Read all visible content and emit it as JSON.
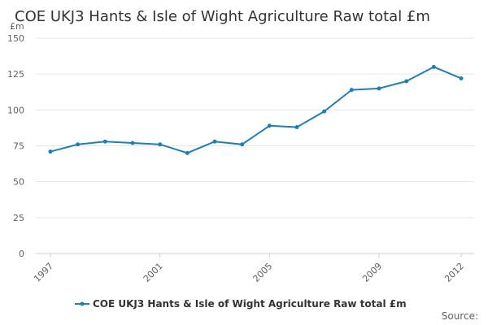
{
  "chart_data": {
    "type": "line",
    "title": "COE UKJ3 Hants & Isle of Wight Agriculture Raw total £m",
    "ylabel": "£m",
    "xlabel": "",
    "ylim": [
      0,
      150
    ],
    "yticks": [
      0,
      25,
      50,
      75,
      100,
      125,
      150
    ],
    "ytick_labels": [
      "0",
      "25",
      "50",
      "75",
      "100",
      "125",
      "150"
    ],
    "x": [
      1997,
      1998,
      1999,
      2000,
      2001,
      2002,
      2003,
      2004,
      2005,
      2006,
      2007,
      2008,
      2009,
      2010,
      2011,
      2012
    ],
    "xtick_labels": [
      "1997",
      "2001",
      "2005",
      "2009",
      "2012"
    ],
    "series": [
      {
        "name": "COE UKJ3 Hants & Isle of Wight Agriculture Raw total £m",
        "values": [
          71,
          76,
          78,
          77,
          76,
          70,
          78,
          76,
          89,
          88,
          99,
          114,
          115,
          120,
          130,
          122
        ],
        "color": "#1f7fb4"
      }
    ],
    "legend_position": "bottom-center",
    "grid": true,
    "source_label": "Source:"
  }
}
